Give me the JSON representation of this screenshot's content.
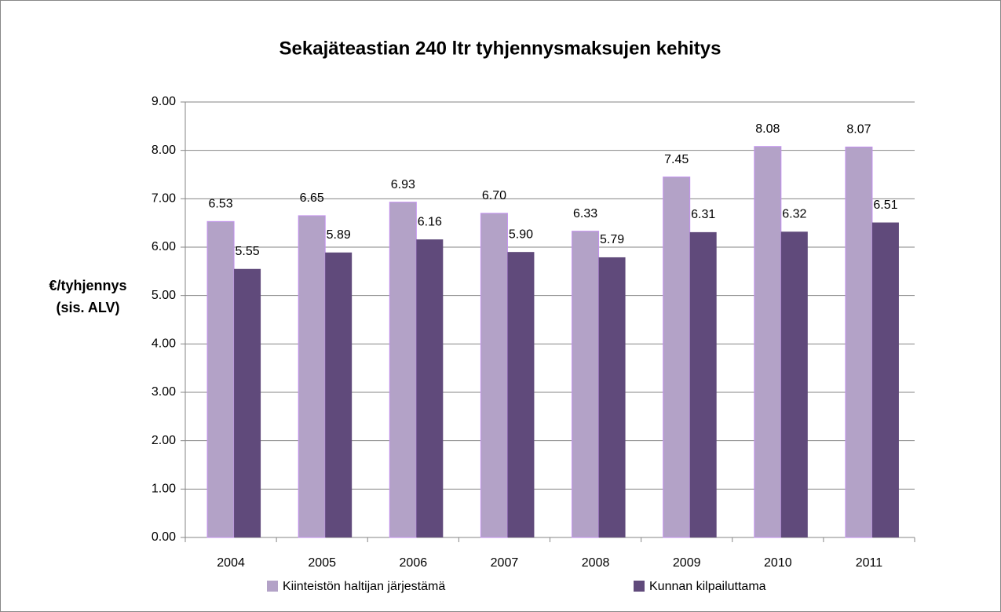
{
  "chart_data": {
    "type": "bar",
    "title": "Sekajäteastian 240 ltr tyhjennysmaksujen kehitys",
    "y_label": [
      "€/tyhjennys",
      "(sis. ALV)"
    ],
    "categories": [
      "2004",
      "2005",
      "2006",
      "2007",
      "2008",
      "2009",
      "2010",
      "2011"
    ],
    "series": [
      {
        "name": "Kiinteistön haltijan järjestämä",
        "color": "#b3a2c7",
        "stroke": "#c291ee",
        "values": [
          6.53,
          6.65,
          6.93,
          6.7,
          6.33,
          7.45,
          8.08,
          8.07
        ],
        "value_labels": [
          "6.53",
          "6.65",
          "6.93",
          "6.70",
          "6.33",
          "7.45",
          "8.08",
          "8.07"
        ]
      },
      {
        "name": "Kunnan kilpailuttama",
        "color": "#604a7b",
        "values": [
          5.55,
          5.89,
          6.16,
          5.9,
          5.79,
          6.31,
          6.32,
          6.51
        ],
        "value_labels": [
          "5.55",
          "5.89",
          "6.16",
          "5.90",
          "5.79",
          "6.31",
          "6.32",
          "6.51"
        ]
      }
    ],
    "ylim": [
      0,
      9
    ],
    "yticks": [
      {
        "value": 0,
        "label": "0.00"
      },
      {
        "value": 1,
        "label": "1.00"
      },
      {
        "value": 2,
        "label": "2.00"
      },
      {
        "value": 3,
        "label": "3.00"
      },
      {
        "value": 4,
        "label": "4.00"
      },
      {
        "value": 5,
        "label": "5.00"
      },
      {
        "value": 6,
        "label": "6.00"
      },
      {
        "value": 7,
        "label": "7.00"
      },
      {
        "value": 8,
        "label": "8.00"
      },
      {
        "value": 9,
        "label": "9.00"
      }
    ],
    "grid": true,
    "legend": "bottom"
  }
}
